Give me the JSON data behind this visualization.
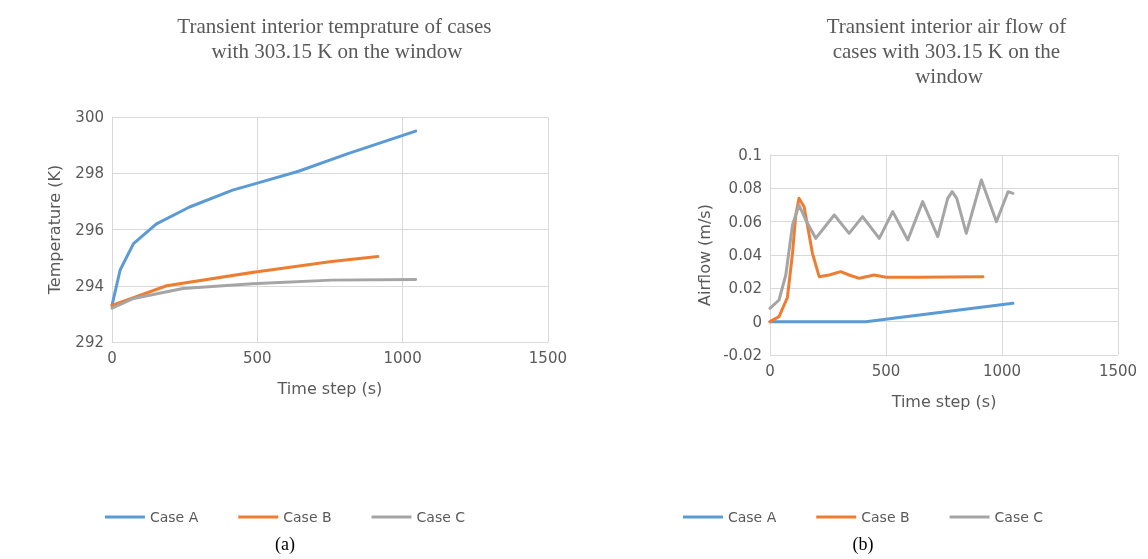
{
  "chart_data": [
    {
      "type": "line",
      "title": "Transient interior temprature of cases with 303.15 K on the window",
      "xlabel": "Time step (s)",
      "ylabel": "Temperature (K)",
      "xlim": [
        0,
        1500
      ],
      "xticks": [
        0,
        500,
        1000,
        1500
      ],
      "ylim": [
        292,
        300
      ],
      "yticks": [
        292,
        294,
        296,
        298,
        300
      ],
      "grid": true,
      "legend": "bottom",
      "marker": "none",
      "line_style": "solid",
      "annotations": [
        "(a)"
      ],
      "series": [
        {
          "name": "Case A",
          "color": "#5b9bd5",
          "x": [
            0,
            28,
            74,
            153,
            267,
            415,
            500,
            642,
            812,
            1045
          ],
          "values": [
            293.3,
            294.56,
            295.5,
            296.2,
            296.8,
            297.4,
            297.65,
            298.07,
            298.7,
            299.5
          ]
        },
        {
          "name": "Case B",
          "color": "#ed7d31",
          "x": [
            0,
            188,
            500,
            756,
            915
          ],
          "values": [
            293.3,
            294.0,
            294.5,
            294.86,
            295.04
          ]
        },
        {
          "name": "Case C",
          "color": "#a5a5a5",
          "x": [
            0,
            74,
            244,
            500,
            756,
            1045
          ],
          "values": [
            293.2,
            293.55,
            293.9,
            294.08,
            294.2,
            294.22
          ]
        }
      ]
    },
    {
      "type": "line",
      "title": "Transient interior air flow of cases with 303.15 K on the window",
      "xlabel": "Time step (s)",
      "ylabel": "Airflow (m/s)",
      "xlim": [
        0,
        1500
      ],
      "xticks": [
        0,
        500,
        1000,
        1500
      ],
      "ylim": [
        -0.02,
        0.1
      ],
      "yticks": [
        -0.02,
        0,
        0.02,
        0.04,
        0.06,
        0.08,
        0.1
      ],
      "grid": true,
      "legend": "bottom",
      "marker": "none",
      "line_style": "solid",
      "annotations": [
        "(b)"
      ],
      "series": [
        {
          "name": "Case A",
          "color": "#5b9bd5",
          "x": [
            0,
            413,
            1047
          ],
          "values": [
            0,
            0,
            0.011
          ]
        },
        {
          "name": "Case B",
          "color": "#ed7d31",
          "x": [
            0,
            39,
            75,
            97,
            111,
            125,
            147,
            183,
            212,
            255,
            305,
            341,
            385,
            449,
            500,
            629,
            918
          ],
          "values": [
            0,
            0.003,
            0.0145,
            0.041,
            0.064,
            0.074,
            0.069,
            0.041,
            0.027,
            0.028,
            0.03,
            0.028,
            0.026,
            0.028,
            0.0266,
            0.0266,
            0.027
          ]
        },
        {
          "name": "Case C",
          "color": "#a5a5a5",
          "x": [
            0,
            39,
            68,
            97,
            125,
            154,
            197,
            277,
            341,
            399,
            471,
            529,
            594,
            658,
            723,
            766,
            785,
            805,
            846,
            911,
            976,
            1026,
            1047
          ],
          "values": [
            0.008,
            0.013,
            0.028,
            0.058,
            0.07,
            0.061,
            0.05,
            0.064,
            0.053,
            0.063,
            0.05,
            0.066,
            0.049,
            0.072,
            0.051,
            0.074,
            0.078,
            0.074,
            0.053,
            0.085,
            0.06,
            0.078,
            0.077
          ]
        }
      ]
    }
  ]
}
